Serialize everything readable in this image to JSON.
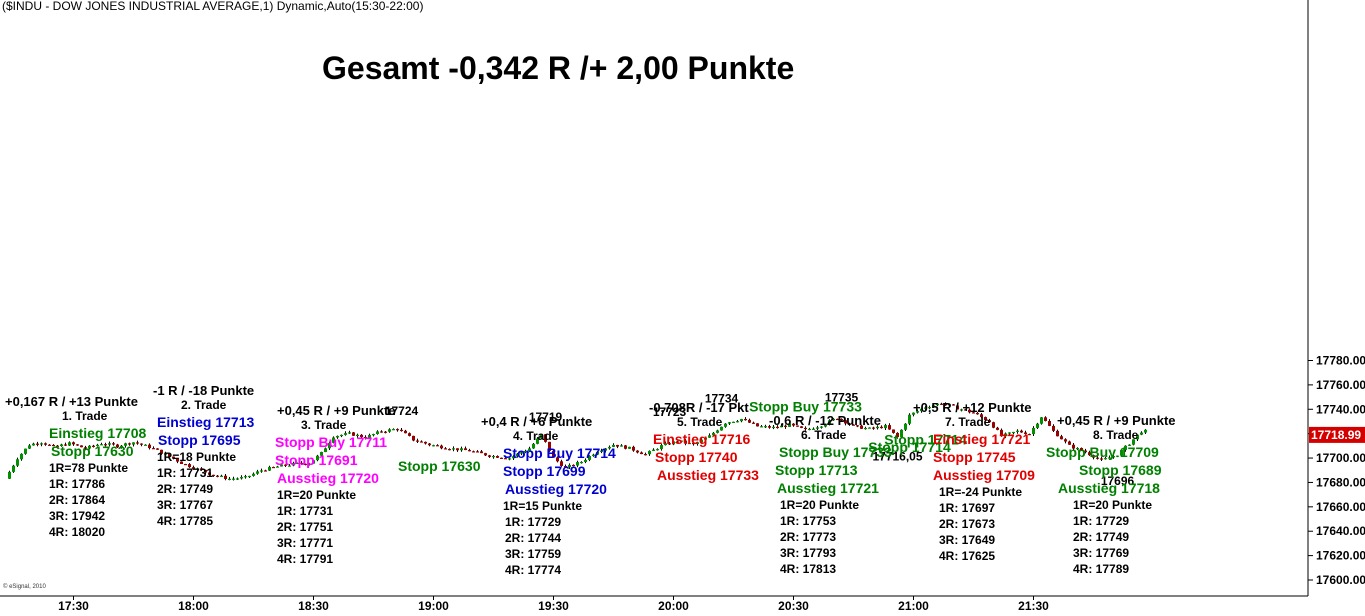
{
  "header": {
    "title": "($INDU - DOW JONES INDUSTRIAL AVERAGE,1) Dynamic,Auto(15:30-22:00)"
  },
  "summary": {
    "text": "Gesamt -0,342 R /+ 2,00 Punkte"
  },
  "credit": "© eSignal, 2010",
  "colors": {
    "up_candle": "#009000",
    "down_candle": "#990000",
    "wick": "#000000",
    "green": "#008000",
    "blue": "#0000d0",
    "magenta": "#ff00ff",
    "red": "#e00000",
    "last_price_bg": "#d40000"
  },
  "chart_data": {
    "type": "candlestick",
    "title": "($INDU - DOW JONES INDUSTRIAL AVERAGE,1) Dynamic,Auto(15:30-22:00)",
    "x_axis": {
      "ticks": [
        "17:30",
        "18:00",
        "18:30",
        "19:00",
        "19:30",
        "20:00",
        "20:30",
        "21:00",
        "21:30"
      ]
    },
    "y_axis": {
      "side": "right",
      "range": [
        17595,
        17782
      ],
      "ticks": [
        "17780.00",
        "17760.00",
        "17740.00",
        "17720.00",
        "17700.00",
        "17680.00",
        "17660.00",
        "17640.00",
        "17620.00",
        "17600.00"
      ]
    },
    "last_price": "17718.99",
    "path_points": [
      [
        "17:14",
        17683
      ],
      [
        "17:17",
        17700
      ],
      [
        "17:20",
        17711
      ],
      [
        "17:23",
        17713
      ],
      [
        "17:26",
        17709
      ],
      [
        "17:30",
        17712
      ],
      [
        "17:34",
        17708
      ],
      [
        "17:38",
        17712
      ],
      [
        "17:42",
        17710
      ],
      [
        "17:46",
        17713
      ],
      [
        "17:50",
        17709
      ],
      [
        "17:54",
        17703
      ],
      [
        "17:58",
        17696
      ],
      [
        "18:02",
        17691
      ],
      [
        "18:06",
        17686
      ],
      [
        "18:10",
        17683
      ],
      [
        "18:14",
        17684
      ],
      [
        "18:18",
        17690
      ],
      [
        "18:22",
        17693
      ],
      [
        "18:26",
        17695
      ],
      [
        "18:30",
        17696
      ],
      [
        "18:33",
        17704
      ],
      [
        "18:36",
        17718
      ],
      [
        "18:40",
        17720
      ],
      [
        "18:44",
        17717
      ],
      [
        "18:48",
        17722
      ],
      [
        "18:52",
        17724
      ],
      [
        "18:56",
        17715
      ],
      [
        "19:00",
        17711
      ],
      [
        "19:05",
        17708
      ],
      [
        "19:10",
        17706
      ],
      [
        "19:15",
        17702
      ],
      [
        "19:20",
        17700
      ],
      [
        "19:25",
        17708
      ],
      [
        "19:28",
        17719
      ],
      [
        "19:31",
        17700
      ],
      [
        "19:34",
        17692
      ],
      [
        "19:38",
        17697
      ],
      [
        "19:42",
        17706
      ],
      [
        "19:46",
        17711
      ],
      [
        "19:50",
        17708
      ],
      [
        "19:54",
        17703
      ],
      [
        "19:58",
        17710
      ],
      [
        "20:02",
        17714
      ],
      [
        "20:06",
        17711
      ],
      [
        "20:10",
        17718
      ],
      [
        "20:14",
        17729
      ],
      [
        "20:18",
        17732
      ],
      [
        "20:22",
        17726
      ],
      [
        "20:26",
        17725
      ],
      [
        "20:30",
        17727
      ],
      [
        "20:34",
        17723
      ],
      [
        "20:38",
        17727
      ],
      [
        "20:42",
        17733
      ],
      [
        "20:46",
        17726
      ],
      [
        "20:50",
        17724
      ],
      [
        "20:54",
        17726
      ],
      [
        "20:57",
        17717
      ],
      [
        "21:00",
        17735
      ],
      [
        "21:04",
        17742
      ],
      [
        "21:08",
        17745
      ],
      [
        "21:12",
        17741
      ],
      [
        "21:16",
        17737
      ],
      [
        "21:20",
        17730
      ],
      [
        "21:23",
        17718
      ],
      [
        "21:27",
        17722
      ],
      [
        "21:30",
        17720
      ],
      [
        "21:33",
        17734
      ],
      [
        "21:36",
        17722
      ],
      [
        "21:40",
        17710
      ],
      [
        "21:44",
        17705
      ],
      [
        "21:48",
        17698
      ],
      [
        "21:52",
        17703
      ],
      [
        "21:55",
        17712
      ],
      [
        "21:58",
        17722
      ]
    ],
    "price_annotations": [
      {
        "text": "17724",
        "time": "18:52",
        "price": 17724,
        "pos": "above"
      },
      {
        "text": "17719",
        "time": "19:28",
        "price": 17719,
        "pos": "above"
      },
      {
        "text": "17723",
        "time": "19:59",
        "price": 17723,
        "pos": "above"
      },
      {
        "text": "17734",
        "time": "20:12",
        "price": 17734,
        "pos": "above"
      },
      {
        "text": "17735",
        "time": "20:42",
        "price": 17735,
        "pos": "above"
      },
      {
        "text": "17716,05",
        "time": "20:56",
        "price": 17716,
        "pos": "below"
      },
      {
        "text": "17696",
        "time": "21:51",
        "price": 17696,
        "pos": "below"
      }
    ],
    "chart_notes": [
      {
        "text": "Stopp Buy 17733",
        "time": "20:33",
        "price": 17738,
        "color": "green"
      },
      {
        "text": "Stopp 17714",
        "time": "21:03",
        "price": 17711,
        "color": "green"
      },
      {
        "text": "Stopp 17714",
        "time": "20:59",
        "price": 17705,
        "color": "green"
      }
    ],
    "trades": [
      {
        "id": 1,
        "x": 5,
        "y": 394,
        "lines": [
          {
            "text": "+0,167 R / +13 Punkte",
            "color": "black",
            "size": 13,
            "dx": 0
          },
          {
            "text": "1. Trade",
            "color": "black",
            "size": 12,
            "dx": 57
          },
          {
            "text": "Einstieg 17708",
            "color": "green",
            "size": 14,
            "dx": 44
          },
          {
            "text": "Stopp 17630",
            "color": "green",
            "size": 14,
            "dx": 46
          },
          {
            "text": "1R=78 Punkte",
            "color": "black",
            "size": 12,
            "dx": 44
          },
          {
            "text": "1R: 17786",
            "color": "black",
            "size": 12,
            "dx": 44
          },
          {
            "text": "2R: 17864",
            "color": "black",
            "size": 12,
            "dx": 44
          },
          {
            "text": "3R: 17942",
            "color": "black",
            "size": 12,
            "dx": 44
          },
          {
            "text": "4R: 18020",
            "color": "black",
            "size": 12,
            "dx": 44
          }
        ]
      },
      {
        "id": 2,
        "x": 153,
        "y": 383,
        "lines": [
          {
            "text": "-1 R / -18 Punkte",
            "color": "black",
            "size": 13,
            "dx": 0
          },
          {
            "text": "2. Trade",
            "color": "black",
            "size": 12,
            "dx": 28
          },
          {
            "text": "Einstieg 17713",
            "color": "blue",
            "size": 14,
            "dx": 4
          },
          {
            "text": "Stopp 17695",
            "color": "blue",
            "size": 14,
            "dx": 5
          },
          {
            "text": "1R=18 Punkte",
            "color": "black",
            "size": 12,
            "dx": 4
          },
          {
            "text": "1R: 17731",
            "color": "black",
            "size": 12,
            "dx": 4
          },
          {
            "text": "2R: 17749",
            "color": "black",
            "size": 12,
            "dx": 4
          },
          {
            "text": "3R: 17767",
            "color": "black",
            "size": 12,
            "dx": 4
          },
          {
            "text": "4R: 17785",
            "color": "black",
            "size": 12,
            "dx": 4
          }
        ]
      },
      {
        "id": 3,
        "x": 275,
        "y": 403,
        "lines": [
          {
            "text": "+0,45 R / +9 Punkte",
            "color": "black",
            "size": 13,
            "dx": 2
          },
          {
            "text": "3. Trade",
            "color": "black",
            "size": 12,
            "dx": 26
          },
          {
            "text": "Stopp Buy 17711",
            "color": "magenta",
            "size": 14,
            "dx": 0
          },
          {
            "text": "Stopp 17691",
            "color": "magenta",
            "size": 14,
            "dx": 0
          },
          {
            "text": "Ausstieg 17720",
            "color": "magenta",
            "size": 14,
            "dx": 2
          },
          {
            "text": "1R=20 Punkte",
            "color": "black",
            "size": 12,
            "dx": 2
          },
          {
            "text": "1R: 17731",
            "color": "black",
            "size": 12,
            "dx": 2
          },
          {
            "text": "2R: 17751",
            "color": "black",
            "size": 12,
            "dx": 2
          },
          {
            "text": "3R: 17771",
            "color": "black",
            "size": 12,
            "dx": 2
          },
          {
            "text": "4R: 17791",
            "color": "black",
            "size": 12,
            "dx": 2
          }
        ]
      },
      {
        "id": 0,
        "x": 398,
        "y": 458,
        "lines": [
          {
            "text": "Stopp 17630",
            "color": "green",
            "size": 14,
            "dx": 0
          }
        ]
      },
      {
        "id": 4,
        "x": 481,
        "y": 414,
        "lines": [
          {
            "text": "+0,4 R / +6 Punkte",
            "color": "black",
            "size": 13,
            "dx": 0
          },
          {
            "text": "4. Trade",
            "color": "black",
            "size": 12,
            "dx": 32
          },
          {
            "text": "Stopp Buy 17714",
            "color": "blue",
            "size": 14,
            "dx": 22
          },
          {
            "text": "Stopp 17699",
            "color": "blue",
            "size": 14,
            "dx": 22
          },
          {
            "text": "Ausstieg 17720",
            "color": "blue",
            "size": 14,
            "dx": 24
          },
          {
            "text": "1R=15 Punkte",
            "color": "black",
            "size": 12,
            "dx": 22
          },
          {
            "text": "1R: 17729",
            "color": "black",
            "size": 12,
            "dx": 24
          },
          {
            "text": "2R: 17744",
            "color": "black",
            "size": 12,
            "dx": 24
          },
          {
            "text": "3R: 17759",
            "color": "black",
            "size": 12,
            "dx": 24
          },
          {
            "text": "4R: 17774",
            "color": "black",
            "size": 12,
            "dx": 24
          }
        ]
      },
      {
        "id": 5,
        "x": 649,
        "y": 400,
        "lines": [
          {
            "text": "-0,708R / -17 Pkt",
            "color": "black",
            "size": 13,
            "dx": 0
          },
          {
            "text": "5. Trade",
            "color": "black",
            "size": 12,
            "dx": 28
          },
          {
            "text": "Einstieg 17716",
            "color": "red",
            "size": 14,
            "dx": 4
          },
          {
            "text": "Stopp 17740",
            "color": "red",
            "size": 14,
            "dx": 6
          },
          {
            "text": "Ausstieg 17733",
            "color": "red",
            "size": 14,
            "dx": 8
          }
        ]
      },
      {
        "id": 6,
        "x": 769,
        "y": 413,
        "lines": [
          {
            "text": "-0,6 R / -12 Punkte",
            "color": "black",
            "size": 13,
            "dx": 0
          },
          {
            "text": "6. Trade",
            "color": "black",
            "size": 12,
            "dx": 32
          },
          {
            "text": "Stopp Buy 17733",
            "color": "green",
            "size": 14,
            "dx": 10
          },
          {
            "text": "Stopp 17713",
            "color": "green",
            "size": 14,
            "dx": 6
          },
          {
            "text": "Ausstieg 17721",
            "color": "green",
            "size": 14,
            "dx": 8
          },
          {
            "text": "1R=20 Punkte",
            "color": "black",
            "size": 12,
            "dx": 11
          },
          {
            "text": "1R: 17753",
            "color": "black",
            "size": 12,
            "dx": 11
          },
          {
            "text": "2R: 17773",
            "color": "black",
            "size": 12,
            "dx": 11
          },
          {
            "text": "3R: 17793",
            "color": "black",
            "size": 12,
            "dx": 11
          },
          {
            "text": "4R: 17813",
            "color": "black",
            "size": 12,
            "dx": 11
          }
        ]
      },
      {
        "id": 7,
        "x": 913,
        "y": 400,
        "lines": [
          {
            "text": "+0,5 R / +12 Punkte",
            "color": "black",
            "size": 13,
            "dx": 0
          },
          {
            "text": "7. Trade",
            "color": "black",
            "size": 12,
            "dx": 32
          },
          {
            "text": "Einstieg 17721",
            "color": "red",
            "size": 14,
            "dx": 20
          },
          {
            "text": "Stopp 17745",
            "color": "red",
            "size": 14,
            "dx": 20
          },
          {
            "text": "Ausstieg 17709",
            "color": "red",
            "size": 14,
            "dx": 20
          },
          {
            "text": "1R=-24 Punkte",
            "color": "black",
            "size": 12,
            "dx": 26
          },
          {
            "text": "1R: 17697",
            "color": "black",
            "size": 12,
            "dx": 26
          },
          {
            "text": "2R: 17673",
            "color": "black",
            "size": 12,
            "dx": 26
          },
          {
            "text": "3R: 17649",
            "color": "black",
            "size": 12,
            "dx": 26
          },
          {
            "text": "4R: 17625",
            "color": "black",
            "size": 12,
            "dx": 26
          }
        ]
      },
      {
        "id": 8,
        "x": 1057,
        "y": 413,
        "lines": [
          {
            "text": "+0,45 R / +9 Punkte",
            "color": "black",
            "size": 13,
            "dx": 0
          },
          {
            "text": "8. Trade",
            "color": "black",
            "size": 12,
            "dx": 36
          },
          {
            "text": "Stopp Buy 17709",
            "color": "green",
            "size": 14,
            "dx": -11
          },
          {
            "text": "Stopp 17689",
            "color": "green",
            "size": 14,
            "dx": 22
          },
          {
            "text": "Ausstieg 17718",
            "color": "green",
            "size": 14,
            "dx": 1
          },
          {
            "text": "1R=20 Punkte",
            "color": "black",
            "size": 12,
            "dx": 16
          },
          {
            "text": "1R: 17729",
            "color": "black",
            "size": 12,
            "dx": 16
          },
          {
            "text": "2R: 17749",
            "color": "black",
            "size": 12,
            "dx": 16
          },
          {
            "text": "3R: 17769",
            "color": "black",
            "size": 12,
            "dx": 16
          },
          {
            "text": "4R: 17789",
            "color": "black",
            "size": 12,
            "dx": 16
          }
        ]
      }
    ]
  }
}
